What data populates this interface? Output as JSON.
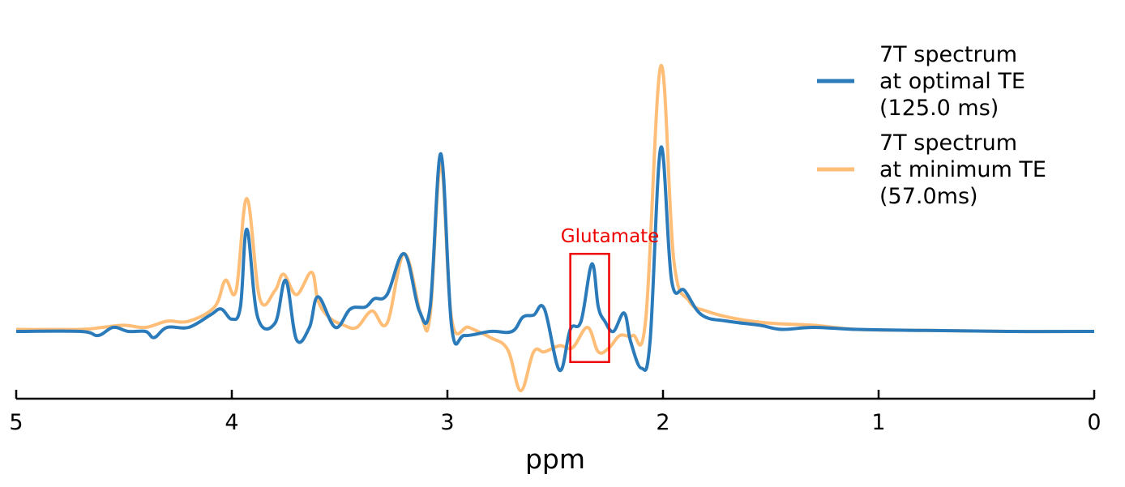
{
  "chart_data": {
    "type": "line",
    "xlabel": "ppm",
    "xlim": [
      5,
      0
    ],
    "x_reversed": true,
    "ylim": [
      -0.35,
      1.4
    ],
    "grid": false,
    "x_ticks": [
      5,
      4,
      3,
      2,
      1,
      0
    ],
    "x_tick_labels": [
      "5",
      "4",
      "3",
      "2",
      "1",
      "0"
    ],
    "legend": {
      "position": "top-right",
      "entries": [
        {
          "lines": [
            "7T spectrum",
            "at optimal TE",
            "(125.0 ms)"
          ],
          "color": "#2b7bba"
        },
        {
          "lines": [
            "7T spectrum",
            "at minimum TE",
            "(57.0ms)"
          ],
          "color": "#ffbe78"
        }
      ]
    },
    "annotation": {
      "text": "Glutamate",
      "color": "#ee0000",
      "x_range": [
        2.43,
        2.25
      ],
      "y_range": [
        -0.15,
        0.38
      ]
    },
    "series": [
      {
        "color": "#2b7bba",
        "baseline": 0.0,
        "points": [
          [
            5.0,
            0.0
          ],
          [
            4.7,
            0.0
          ],
          [
            4.62,
            -0.02
          ],
          [
            4.55,
            0.02
          ],
          [
            4.48,
            0.0
          ],
          [
            4.4,
            0.0
          ],
          [
            4.36,
            -0.03
          ],
          [
            4.3,
            0.02
          ],
          [
            4.2,
            0.02
          ],
          [
            4.1,
            0.08
          ],
          [
            4.05,
            0.11
          ],
          [
            4.0,
            0.06
          ],
          [
            3.96,
            0.12
          ],
          [
            3.93,
            0.5
          ],
          [
            3.88,
            0.07
          ],
          [
            3.8,
            0.04
          ],
          [
            3.75,
            0.25
          ],
          [
            3.7,
            -0.04
          ],
          [
            3.64,
            0.02
          ],
          [
            3.6,
            0.17
          ],
          [
            3.52,
            0.02
          ],
          [
            3.45,
            0.11
          ],
          [
            3.38,
            0.12
          ],
          [
            3.34,
            0.16
          ],
          [
            3.28,
            0.18
          ],
          [
            3.2,
            0.38
          ],
          [
            3.13,
            0.1
          ],
          [
            3.08,
            0.12
          ],
          [
            3.03,
            0.87
          ],
          [
            2.98,
            0.02
          ],
          [
            2.92,
            -0.02
          ],
          [
            2.8,
            0.0
          ],
          [
            2.7,
            0.0
          ],
          [
            2.65,
            0.07
          ],
          [
            2.6,
            0.08
          ],
          [
            2.55,
            0.11
          ],
          [
            2.48,
            -0.19
          ],
          [
            2.43,
            0.01
          ],
          [
            2.38,
            0.05
          ],
          [
            2.33,
            0.33
          ],
          [
            2.3,
            0.12
          ],
          [
            2.27,
            0.05
          ],
          [
            2.23,
            0.0
          ],
          [
            2.18,
            0.09
          ],
          [
            2.15,
            -0.05
          ],
          [
            2.1,
            -0.18
          ],
          [
            2.06,
            -0.05
          ],
          [
            2.01,
            0.9
          ],
          [
            1.96,
            0.25
          ],
          [
            1.9,
            0.2
          ],
          [
            1.82,
            0.08
          ],
          [
            1.7,
            0.05
          ],
          [
            1.55,
            0.03
          ],
          [
            1.45,
            0.01
          ],
          [
            1.3,
            0.02
          ],
          [
            1.1,
            0.01
          ],
          [
            0.8,
            0.005
          ],
          [
            0.4,
            0.0
          ],
          [
            0.0,
            0.0
          ]
        ]
      },
      {
        "color": "#ffbe78",
        "baseline": 0.0,
        "points": [
          [
            5.0,
            0.01
          ],
          [
            4.7,
            0.01
          ],
          [
            4.6,
            0.02
          ],
          [
            4.5,
            0.03
          ],
          [
            4.4,
            0.02
          ],
          [
            4.3,
            0.05
          ],
          [
            4.2,
            0.05
          ],
          [
            4.08,
            0.12
          ],
          [
            4.03,
            0.25
          ],
          [
            3.98,
            0.2
          ],
          [
            3.93,
            0.65
          ],
          [
            3.87,
            0.16
          ],
          [
            3.8,
            0.2
          ],
          [
            3.76,
            0.28
          ],
          [
            3.7,
            0.18
          ],
          [
            3.63,
            0.29
          ],
          [
            3.6,
            0.15
          ],
          [
            3.55,
            0.07
          ],
          [
            3.48,
            0.03
          ],
          [
            3.42,
            0.02
          ],
          [
            3.35,
            0.1
          ],
          [
            3.28,
            0.04
          ],
          [
            3.2,
            0.38
          ],
          [
            3.12,
            0.07
          ],
          [
            3.08,
            0.08
          ],
          [
            3.03,
            0.82
          ],
          [
            2.98,
            0.06
          ],
          [
            2.9,
            0.02
          ],
          [
            2.8,
            -0.03
          ],
          [
            2.72,
            -0.09
          ],
          [
            2.66,
            -0.29
          ],
          [
            2.6,
            -0.1
          ],
          [
            2.55,
            -0.1
          ],
          [
            2.48,
            -0.07
          ],
          [
            2.42,
            -0.08
          ],
          [
            2.35,
            0.02
          ],
          [
            2.3,
            -0.1
          ],
          [
            2.25,
            -0.08
          ],
          [
            2.2,
            -0.02
          ],
          [
            2.14,
            -0.02
          ],
          [
            2.08,
            0.06
          ],
          [
            2.01,
            1.3
          ],
          [
            1.95,
            0.35
          ],
          [
            1.88,
            0.15
          ],
          [
            1.8,
            0.1
          ],
          [
            1.65,
            0.06
          ],
          [
            1.5,
            0.04
          ],
          [
            1.3,
            0.03
          ],
          [
            1.1,
            0.01
          ],
          [
            0.8,
            0.005
          ],
          [
            0.4,
            0.0
          ],
          [
            0.0,
            0.0
          ]
        ]
      }
    ]
  }
}
